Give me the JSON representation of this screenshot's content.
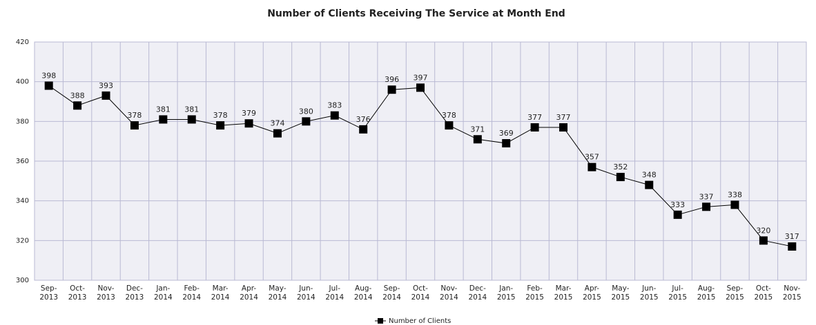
{
  "chart_data": {
    "type": "line",
    "title": "Number of Clients Receiving The Service at Month End",
    "categories": [
      "Sep-2013",
      "Oct-2013",
      "Nov-2013",
      "Dec-2013",
      "Jan-2014",
      "Feb-2014",
      "Mar-2014",
      "Apr-2014",
      "May-2014",
      "Jun-2014",
      "Jul-2014",
      "Aug-2014",
      "Sep-2014",
      "Oct-2014",
      "Nov-2014",
      "Dec-2014",
      "Jan-2015",
      "Feb-2015",
      "Mar-2015",
      "Apr-2015",
      "May-2015",
      "Jun-2015",
      "Jul-2015",
      "Aug-2015",
      "Sep-2015",
      "Oct-2015",
      "Nov-2015"
    ],
    "series": [
      {
        "name": "Number of Clients",
        "color": "#000000",
        "values": [
          398,
          388,
          393,
          378,
          381,
          381,
          378,
          379,
          374,
          380,
          383,
          376,
          396,
          397,
          378,
          371,
          369,
          377,
          377,
          357,
          352,
          348,
          333,
          337,
          338,
          320,
          317
        ]
      }
    ],
    "ylim": [
      300,
      420
    ],
    "yticks": [
      300,
      320,
      340,
      360,
      380,
      400,
      420
    ],
    "grid": true,
    "legend": "bottom"
  }
}
